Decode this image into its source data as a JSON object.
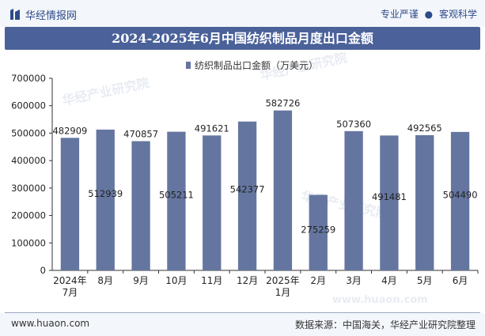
{
  "header": {
    "brand_name": "华经情报网",
    "tagline_left": "专业严谨",
    "tagline_sep": "●",
    "tagline_right": "客观科学"
  },
  "footer": {
    "website": "www.huaon.com",
    "source": "数据来源：中国海关，华经产业研究院整理"
  },
  "watermarks": [
    "华经产业研究院",
    "华经产业研究院",
    "华经产业研究院",
    "www.huaon.com"
  ],
  "colors": {
    "bar": "#6476a0",
    "title_bg": "#4a6199",
    "brand": "#2d4a8a"
  },
  "chart_data": {
    "type": "bar",
    "title": "2024-2025年6月中国纺织制品月度出口金额",
    "categories": [
      [
        "2024年",
        "7月"
      ],
      [
        "8月"
      ],
      [
        "9月"
      ],
      [
        "10月"
      ],
      [
        "11月"
      ],
      [
        "12月"
      ],
      [
        "2025年",
        "1月"
      ],
      [
        "2月"
      ],
      [
        "3月"
      ],
      [
        "4月"
      ],
      [
        "5月"
      ],
      [
        "6月"
      ]
    ],
    "series": [
      {
        "name": "纺织制品出口金额（万美元）",
        "values": [
          482909,
          512939,
          470857,
          505211,
          491621,
          542377,
          582726,
          275259,
          507360,
          491481,
          492565,
          504490
        ],
        "label_position": [
          "top",
          "inside",
          "top",
          "inside",
          "top",
          "inside",
          "top",
          "inside",
          "top",
          "inside",
          "top",
          "inside"
        ]
      }
    ],
    "ylim": [
      0,
      700000
    ],
    "yticks": [
      0,
      100000,
      200000,
      300000,
      400000,
      500000,
      600000,
      700000
    ],
    "grid": false,
    "legend": "top-center"
  }
}
